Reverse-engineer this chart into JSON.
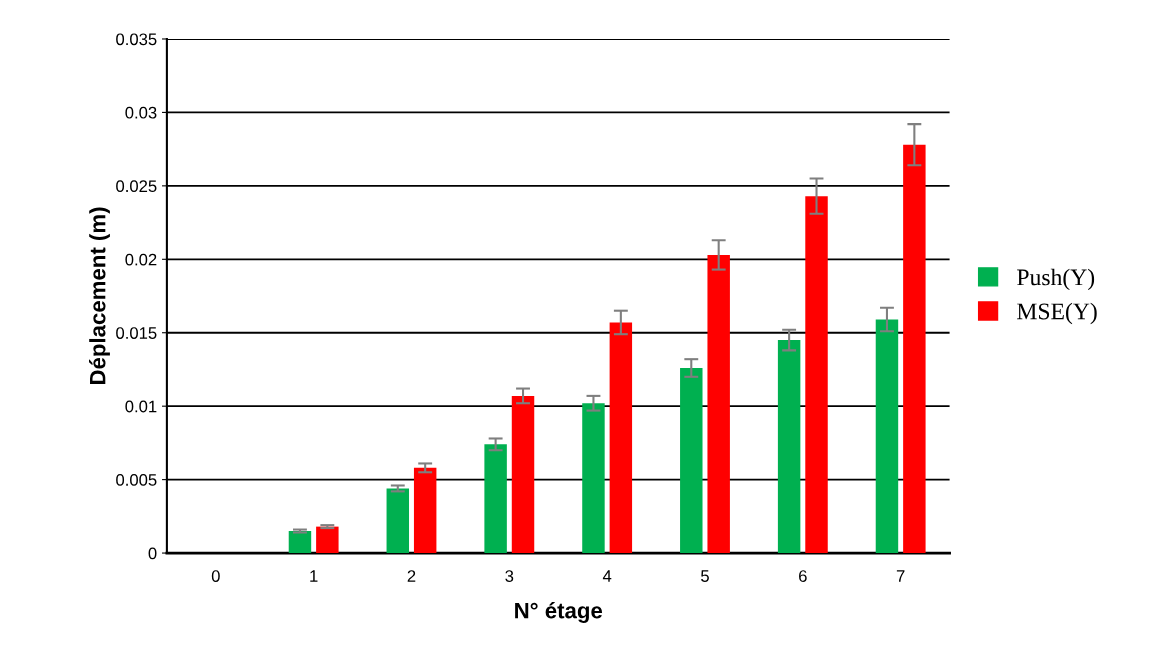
{
  "chart_data": {
    "type": "bar",
    "xlabel": "N° étage",
    "ylabel": "Déplacement (m)",
    "categories": [
      "0",
      "1",
      "2",
      "3",
      "4",
      "5",
      "6",
      "7"
    ],
    "series": [
      {
        "name": "Push(Y)",
        "color": "#00b050",
        "values": [
          0,
          0.0015,
          0.0044,
          0.0074,
          0.0102,
          0.0126,
          0.0145,
          0.0159
        ],
        "errors": [
          null,
          0.0001,
          0.0002,
          0.0004,
          0.0005,
          0.0006,
          0.0007,
          0.0008
        ]
      },
      {
        "name": "MSE(Y)",
        "color": "#ff0000",
        "values": [
          0,
          0.0018,
          0.0058,
          0.0107,
          0.0157,
          0.0203,
          0.0243,
          0.0278
        ],
        "errors": [
          null,
          0.0001,
          0.0003,
          0.0005,
          0.0008,
          0.001,
          0.0012,
          0.0014
        ]
      }
    ],
    "ylim": [
      0,
      0.035
    ],
    "yticks": [
      0,
      0.005,
      0.01,
      0.015,
      0.02,
      0.025,
      0.03,
      0.035
    ],
    "grid": "y",
    "legend": "right"
  }
}
